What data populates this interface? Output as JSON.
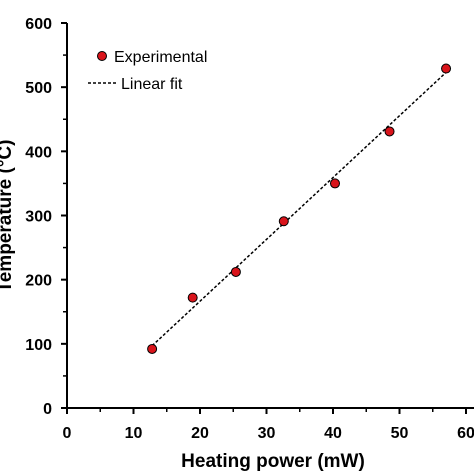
{
  "chart_data": {
    "type": "scatter",
    "xlabel": "Heating power (mW)",
    "ylabel": "Temperature (°C)",
    "xlim": [
      0,
      60
    ],
    "ylim": [
      0,
      600
    ],
    "x_ticks": [
      "0",
      "10",
      "20",
      "30",
      "40",
      "50",
      "60"
    ],
    "y_ticks": [
      "0",
      "100",
      "200",
      "300",
      "400",
      "500",
      "600"
    ],
    "grid": false,
    "legend_position": "top-left",
    "series": [
      {
        "name": "Experimental",
        "kind": "points",
        "marker": "circle",
        "color": "#d9141b",
        "x": [
          12.8,
          18.9,
          25.4,
          32.6,
          40.3,
          48.5,
          57.0
        ],
        "y": [
          92,
          172,
          212,
          291,
          350,
          431,
          529
        ]
      },
      {
        "name": "Linear fit",
        "kind": "line",
        "style": "dashed",
        "color": "#000000",
        "x": [
          12.8,
          57.0
        ],
        "y": [
          97,
          523
        ]
      }
    ]
  }
}
